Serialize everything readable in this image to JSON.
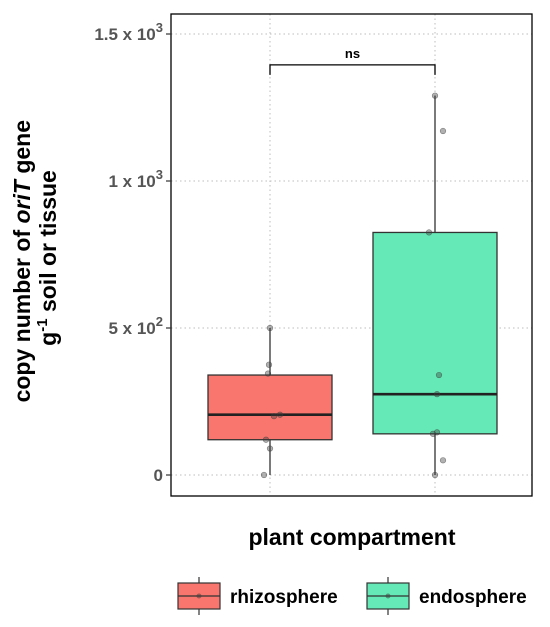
{
  "chart_data": {
    "type": "box",
    "xlabel": "plant compartment",
    "ylabel": {
      "line1_pre": "copy number of ",
      "line1_italic": "oriT",
      "line1_post": " gene",
      "line2_pre": "g",
      "line2_sup": "-1",
      "line2_post": " soil or tissue"
    },
    "ylim": [
      -15,
      1500
    ],
    "y_ticks": [
      {
        "value": 0,
        "base": "0",
        "sup": ""
      },
      {
        "value": 500,
        "base": "5 x 10",
        "sup": "2"
      },
      {
        "value": 1000,
        "base": "1 x 10",
        "sup": "3"
      },
      {
        "value": 1500,
        "base": "1.5 x 10",
        "sup": "3"
      }
    ],
    "grid": true,
    "legend_position": "bottom",
    "groups": [
      {
        "name": "rhizosphere",
        "color": "#F8766D",
        "whisker_low": 0,
        "q1": 120,
        "median": 205,
        "q3": 340,
        "whisker_high": 500,
        "points": [
          0,
          90,
          120,
          200,
          205,
          345,
          375,
          500
        ]
      },
      {
        "name": "endosphere",
        "color": "#65E9B6",
        "whisker_low": 0,
        "q1": 140,
        "median": 275,
        "q3": 825,
        "whisker_high": 1290,
        "points": [
          0,
          50,
          140,
          145,
          275,
          340,
          825,
          1170,
          1290
        ]
      }
    ],
    "annotations": [
      {
        "type": "significance",
        "label": "ns",
        "between": [
          "rhizosphere",
          "endosphere"
        ],
        "y": 1395
      }
    ]
  }
}
